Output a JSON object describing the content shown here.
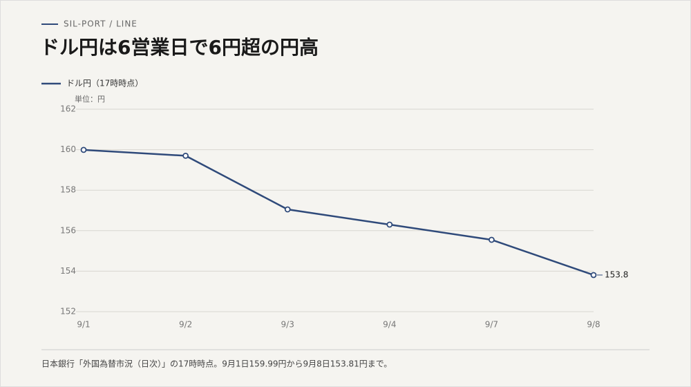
{
  "chart_data": {
    "type": "line",
    "kicker": "SIL-PORT / LINE",
    "title": "ドル円は6営業日で6円超の円高",
    "y_unit": "単位：円",
    "note": "日本銀行「外国為替市況（日次）」の17時時点。9月1日159.99円から9月8日153.81円まで。",
    "categories": [
      "9/1",
      "9/2",
      "9/3",
      "9/4",
      "9/7",
      "9/8"
    ],
    "series": [
      {
        "name": "ドル円（17時時点）",
        "color": "#2f4a7a",
        "values": [
          159.99,
          159.7,
          157.05,
          156.3,
          155.55,
          153.81
        ],
        "value_labels": [
          null,
          null,
          null,
          null,
          null,
          "153.8"
        ]
      }
    ],
    "ylim": [
      152,
      162
    ],
    "yticks": [
      152,
      154,
      156,
      158,
      160,
      162
    ],
    "grid": true,
    "legend": "top-left"
  }
}
